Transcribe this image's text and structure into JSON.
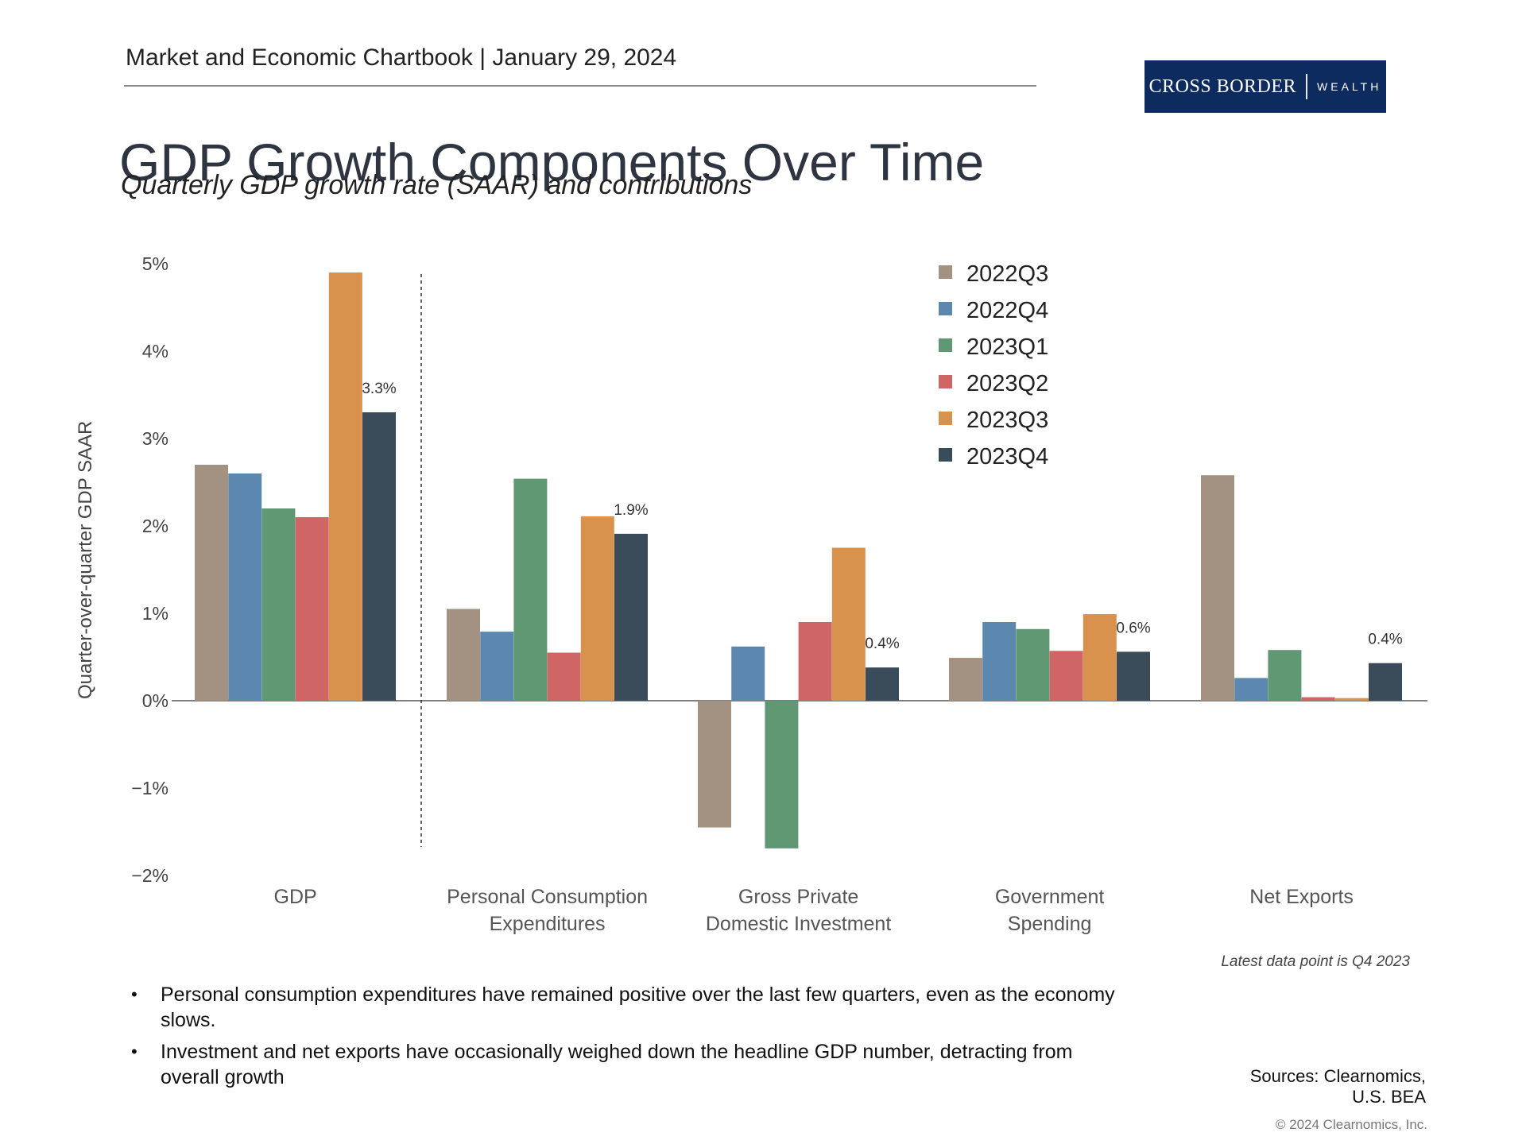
{
  "header": {
    "chartbook": "Market and Economic Chartbook | January 29, 2024",
    "logo_brand": "CROSS BORDER",
    "logo_sub": "WEALTH"
  },
  "title": "GDP Growth Components Over Time",
  "subtitle": "Quarterly GDP growth rate (SAAR) and contributions",
  "colors": {
    "2022Q3": "#a39282",
    "2022Q4": "#5c88b0",
    "2023Q1": "#609874",
    "2023Q2": "#d06565",
    "2023Q3": "#d8924e",
    "2023Q4": "#3a4b5a",
    "logo_bg": "#0d2b5e"
  },
  "chart_data": {
    "type": "bar",
    "title": "GDP Growth Components Over Time",
    "ylabel": "Quarter-over-quarter GDP SAAR",
    "xlabel": "",
    "ylim": [
      -2,
      5
    ],
    "yticks": [
      "5%",
      "4%",
      "3%",
      "2%",
      "1%",
      "0%",
      "−1%",
      "−2%"
    ],
    "ytick_values": [
      5,
      4,
      3,
      2,
      1,
      0,
      -1,
      -2
    ],
    "categories": [
      [
        "GDP"
      ],
      [
        "Personal Consumption",
        "Expenditures"
      ],
      [
        "Gross Private",
        "Domestic Investment"
      ],
      [
        "Government",
        "Spending"
      ],
      [
        "Net Exports"
      ]
    ],
    "series": [
      {
        "name": "2022Q3",
        "values": [
          2.7,
          1.05,
          -1.45,
          0.49,
          2.58
        ]
      },
      {
        "name": "2022Q4",
        "values": [
          2.6,
          0.79,
          0.62,
          0.9,
          0.26
        ]
      },
      {
        "name": "2023Q1",
        "values": [
          2.2,
          2.54,
          -1.69,
          0.82,
          0.58
        ]
      },
      {
        "name": "2023Q2",
        "values": [
          2.1,
          0.55,
          0.9,
          0.57,
          0.04
        ]
      },
      {
        "name": "2023Q3",
        "values": [
          4.9,
          2.11,
          1.75,
          0.99,
          0.03
        ]
      },
      {
        "name": "2023Q4",
        "values": [
          3.3,
          1.91,
          0.38,
          0.56,
          0.43
        ]
      }
    ],
    "data_labels": [
      "3.3%",
      "1.9%",
      "0.4%",
      "0.6%",
      "0.4%"
    ],
    "legend_position": "top-right",
    "divider_after_category": 0
  },
  "note": "Latest data point is Q4 2023",
  "bullets": [
    "Personal consumption expenditures have remained positive over the last few quarters, even as the economy slows.",
    "Investment and net exports have occasionally weighed down the headline GDP number, detracting from overall growth"
  ],
  "sources": {
    "line1": "Sources: Clearnomics,",
    "line2": "U.S. BEA"
  },
  "copyright": "© 2024 Clearnomics, Inc."
}
